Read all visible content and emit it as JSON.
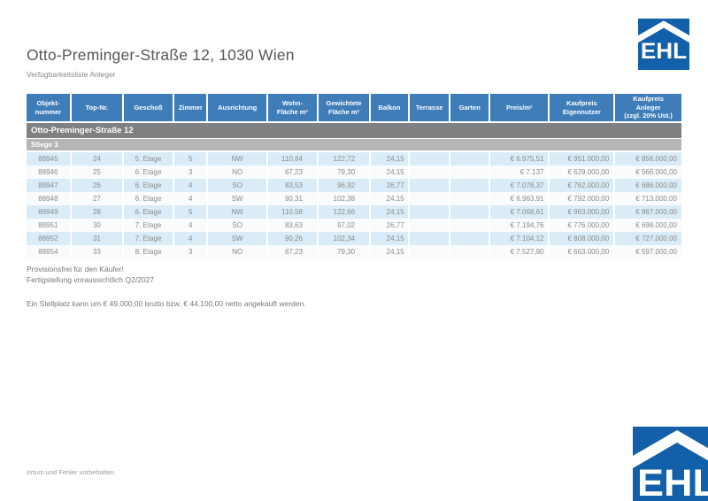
{
  "page": {
    "title": "Otto-Preminger-Straße 12, 1030 Wien",
    "subtitle": "Verfügbarkeitsliste Anleger",
    "disclaimer": "Irrtum und Fehler vorbehalten."
  },
  "logo": {
    "text": "EHL"
  },
  "colors": {
    "logo_blue": "#1160a9",
    "table_header_blue": "#3f7db9",
    "row_stripe_blue": "#d9ecf7",
    "row_alt": "#fafbfc",
    "group_bar_gray": "#7f8183",
    "subgroup_bar_gray": "#b4b5b7"
  },
  "table": {
    "group_header": "Otto-Preminger-Straße 12",
    "subgroup_header": "Stiege 3",
    "columns": [
      {
        "id": "objektnummer",
        "lines": [
          "Objekt-",
          "nummer"
        ]
      },
      {
        "id": "top_nr",
        "lines": [
          "Top-Nr."
        ]
      },
      {
        "id": "geschoss",
        "lines": [
          "Geschoß"
        ]
      },
      {
        "id": "zimmer",
        "lines": [
          "Zimmer"
        ]
      },
      {
        "id": "ausrichtung",
        "lines": [
          "Ausrichtung"
        ]
      },
      {
        "id": "wohnflaeche",
        "lines": [
          "Wohn-",
          "Fläche m²"
        ]
      },
      {
        "id": "gewichtete_flaeche",
        "lines": [
          "Gewichtete",
          "Fläche m²"
        ]
      },
      {
        "id": "balkon",
        "lines": [
          "Balkon"
        ]
      },
      {
        "id": "terrasse",
        "lines": [
          "Terrasse"
        ]
      },
      {
        "id": "garten",
        "lines": [
          "Garten"
        ]
      },
      {
        "id": "preis_m2",
        "lines": [
          "Preis/m²"
        ]
      },
      {
        "id": "kaufpreis_eigennutzer",
        "lines": [
          "Kaufpreis",
          "Eigennutzer"
        ]
      },
      {
        "id": "kaufpreis_anleger",
        "lines": [
          "Kaufpreis",
          "Anleger",
          "(zzgl. 20% Ust.)"
        ]
      }
    ],
    "rows": [
      [
        "88945",
        "24",
        "5. Etage",
        "5",
        "NW",
        "110,64",
        "122,72",
        "24,15",
        "",
        "",
        "€ 6.975,51",
        "€ 951.000,00",
        "€ 856.000,00"
      ],
      [
        "88946",
        "25",
        "6. Etage",
        "3",
        "NO",
        "67,23",
        "79,30",
        "24,15",
        "",
        "",
        "€ 7.137",
        "€ 629.000,00",
        "€ 566.000,00"
      ],
      [
        "88947",
        "26",
        "6. Etage",
        "4",
        "SO",
        "83,53",
        "96,92",
        "26,77",
        "",
        "",
        "€ 7.078,37",
        "€ 762.000,00",
        "€ 686.000,00"
      ],
      [
        "88948",
        "27",
        "6. Etage",
        "4",
        "SW",
        "90,31",
        "102,38",
        "24,15",
        "",
        "",
        "€ 6.963,91",
        "€ 792.000,00",
        "€ 713.000,00"
      ],
      [
        "88949",
        "28",
        "6. Etage",
        "5",
        "NW",
        "110,58",
        "122,66",
        "24,15",
        "",
        "",
        "€ 7.068,61",
        "€ 963.000,00",
        "€ 867.000,00"
      ],
      [
        "88951",
        "30",
        "7. Etage",
        "4",
        "SO",
        "83,63",
        "97,02",
        "26,77",
        "",
        "",
        "€ 7.194,76",
        "€ 776.000,00",
        "€ 698.000,00"
      ],
      [
        "88952",
        "31",
        "7. Etage",
        "4",
        "SW",
        "90,26",
        "102,34",
        "24,15",
        "",
        "",
        "€ 7.104,12",
        "€ 808.000,00",
        "€ 727.000,00"
      ],
      [
        "88954",
        "33",
        "8. Etage",
        "3",
        "NO",
        "67,23",
        "79,30",
        "24,15",
        "",
        "",
        "€ 7.527,90",
        "€ 663.000,00",
        "€ 597.000,00"
      ]
    ]
  },
  "notes": {
    "line1": "Provisionsfrei für den Käufer!",
    "line2": "Fertigstellung voraussichtlich Q2/2027",
    "line3": "Ein Stellplatz kann um € 49.000,00 brutto bzw. € 44.100,00 netto angekauft werden."
  }
}
